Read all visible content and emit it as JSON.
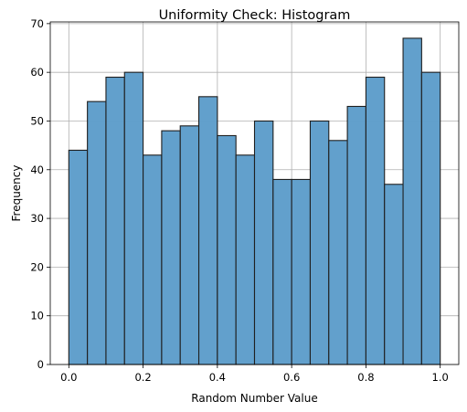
{
  "chart_data": {
    "type": "bar",
    "title": "Uniformity Check: Histogram",
    "xlabel": "Random Number Value",
    "ylabel": "Frequency",
    "xlim": [
      -0.05,
      1.05
    ],
    "ylim": [
      0,
      70.35
    ],
    "xticks": [
      0.0,
      0.2,
      0.4,
      0.6,
      0.8,
      1.0
    ],
    "xtick_labels": [
      "0.0",
      "0.2",
      "0.4",
      "0.6",
      "0.8",
      "1.0"
    ],
    "yticks": [
      0,
      10,
      20,
      30,
      40,
      50,
      60,
      70
    ],
    "ytick_labels": [
      "0",
      "10",
      "20",
      "30",
      "40",
      "50",
      "60",
      "70"
    ],
    "grid": true,
    "bin_edges": [
      0.0,
      0.05,
      0.1,
      0.15,
      0.2,
      0.25,
      0.3,
      0.35,
      0.4,
      0.45,
      0.5,
      0.55,
      0.6,
      0.65,
      0.7,
      0.75,
      0.8,
      0.85,
      0.9,
      0.95,
      1.0
    ],
    "values": [
      44,
      54,
      59,
      60,
      43,
      48,
      49,
      55,
      47,
      43,
      50,
      38,
      38,
      50,
      46,
      53,
      59,
      37,
      67,
      60
    ],
    "bar_color": "#5f9ecb",
    "bar_opacity": 0.98,
    "edge_color": "#1f1f1f"
  }
}
